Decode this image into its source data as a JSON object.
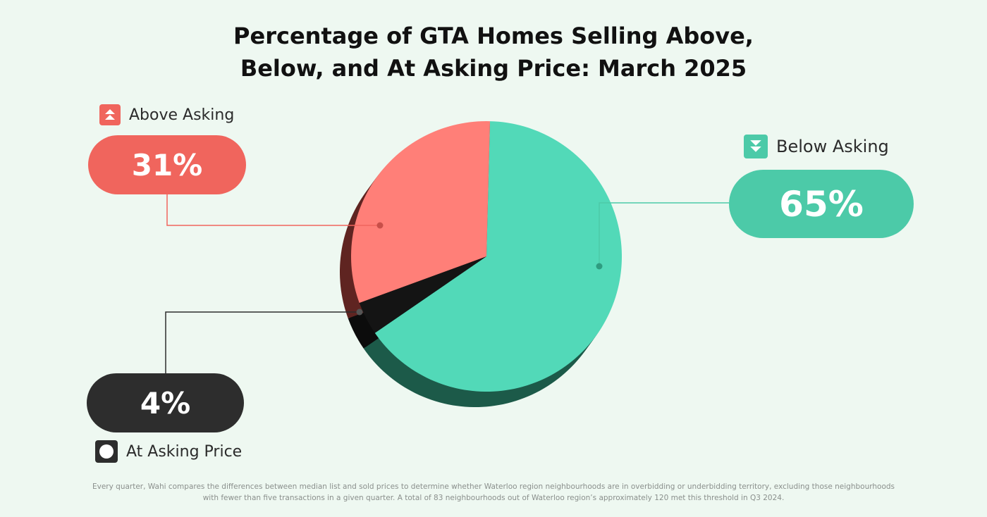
{
  "chart_data": {
    "type": "pie",
    "title": "Percentage of GTA Homes Selling Above, Below, and At Asking Price: March 2025",
    "title_lines": [
      "Percentage of GTA Homes Selling Above,",
      "Below, and At Asking Price: March 2025"
    ],
    "slices": [
      {
        "name": "Below Asking",
        "value": 65,
        "label": "65%",
        "color": "#52d9b8",
        "side_color": "#1c5a49",
        "pill_color": "#4ccaa8",
        "icon": "double-chevron-down-icon"
      },
      {
        "name": "At Asking Price",
        "value": 4,
        "label": "4%",
        "color": "#141414",
        "side_color": "#0c0c0c",
        "pill_color": "#2d2d2d",
        "icon": "circle-icon"
      },
      {
        "name": "Above Asking",
        "value": 31,
        "label": "31%",
        "color": "#ff7f78",
        "side_color": "#5f2421",
        "pill_color": "#f0655d",
        "icon": "double-chevron-up-icon"
      }
    ],
    "legend_placement": "beside slices with leader lines",
    "grid": false
  },
  "footnote": {
    "line1": "Every quarter, Wahi compares the differences between median list and sold prices to determine whether Waterloo region neighbourhoods are in overbidding or underbidding territory, excluding those neighbourhoods",
    "line2": "with fewer than five transactions in a given quarter. A total of 83 neighbourhoods out of Waterloo region’s approximately 120 met this threshold in Q3 2024."
  }
}
